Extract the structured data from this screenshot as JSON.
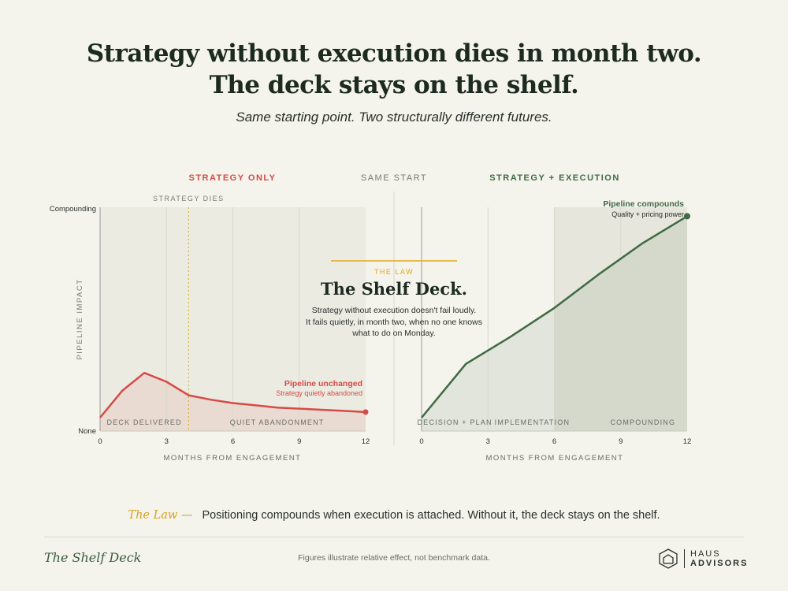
{
  "header": {
    "title_line1": "Strategy without execution dies in month two.",
    "title_line2": "The deck stays on the shelf.",
    "subtitle": "Same starting point. Two structurally different futures."
  },
  "colors": {
    "red": "#d54b47",
    "green": "#3f6a43",
    "gold": "#e0a81c",
    "grid": "#dcdbd2",
    "panel": "#ecebe2"
  },
  "chart_data": [
    {
      "type": "line",
      "panel_header": "STRATEGY ONLY",
      "xlabel": "MONTHS FROM ENGAGEMENT",
      "ylabel": "PIPELINE IMPACT",
      "xlim": [
        0,
        12
      ],
      "x_ticks": [
        0,
        3,
        6,
        9,
        12
      ],
      "y_ticks": {
        "top": "Compounding",
        "bottom": "None"
      },
      "ylim": [
        0,
        100
      ],
      "series": [
        {
          "x": [
            0,
            1,
            2,
            3,
            4,
            5,
            6,
            7,
            8,
            9,
            10,
            11,
            12
          ],
          "y": [
            6,
            18,
            26,
            22,
            16,
            14,
            12.5,
            11.5,
            10.5,
            10,
            9.5,
            9,
            8.5
          ]
        }
      ],
      "end_label": "Pipeline unchanged",
      "end_sublabel": "Strategy quietly abandoned",
      "vline": {
        "x": 4,
        "label": "STRATEGY DIES"
      },
      "phases": [
        {
          "label": "DECK DELIVERED",
          "x": 2
        },
        {
          "label": "QUIET ABANDONMENT",
          "x": 8
        }
      ]
    },
    {
      "type": "area",
      "panel_header": "STRATEGY + EXECUTION",
      "xlabel": "MONTHS FROM ENGAGEMENT",
      "xlim": [
        0,
        12
      ],
      "x_ticks": [
        0,
        3,
        6,
        9,
        12
      ],
      "ylim": [
        0,
        100
      ],
      "series": [
        {
          "x": [
            0,
            2,
            4,
            6,
            8,
            10,
            12
          ],
          "y": [
            6,
            30,
            42,
            55,
            70,
            84,
            96
          ]
        }
      ],
      "shaded_from_x": 6,
      "end_label": "Pipeline compounds",
      "end_sublabel": "Quality + pricing power",
      "phases": [
        {
          "label": "DECISION + PLAN",
          "x": 1.5
        },
        {
          "label": "IMPLEMENTATION",
          "x": 5
        },
        {
          "label": "COMPOUNDING",
          "x": 10
        }
      ]
    }
  ],
  "center": {
    "header": "SAME START",
    "law_kicker": "THE LAW",
    "law_title": "The Shelf Deck.",
    "law_body_1": "Strategy without execution doesn't fail loudly.",
    "law_body_2": "It fails quietly, in month two, when no one knows",
    "law_body_3": "what to do on Monday."
  },
  "bottom": {
    "law_label": "The Law —",
    "law_text": "Positioning compounds when execution is attached. Without it, the deck stays on the shelf."
  },
  "footer": {
    "brand": "The Shelf Deck",
    "note": "Figures illustrate relative effect, not benchmark data.",
    "logo_line1": "HAUS",
    "logo_line2": "ADVISORS",
    "logo_icon": "house-hexagon-icon"
  }
}
